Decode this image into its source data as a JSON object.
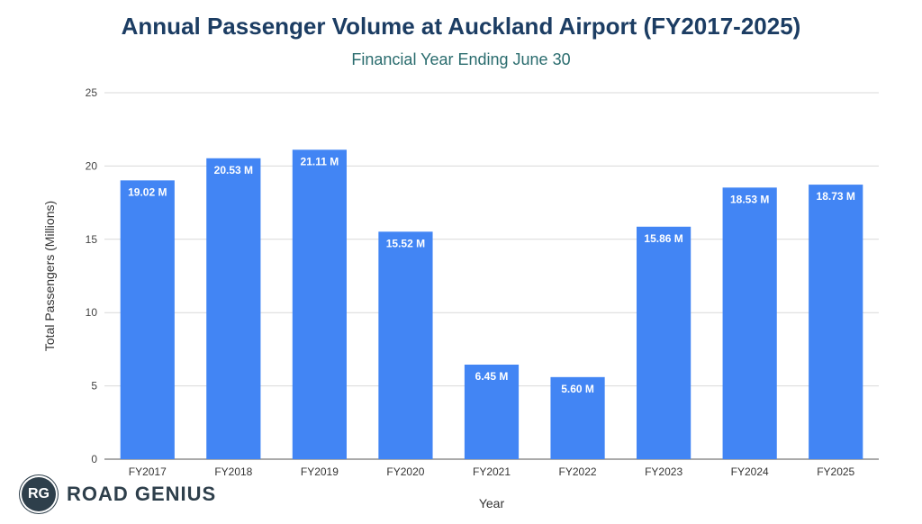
{
  "chart_data": {
    "type": "bar",
    "title": "Annual Passenger Volume at Auckland Airport (FY2017-2025)",
    "subtitle": "Financial Year Ending June 30",
    "xlabel": "Year",
    "ylabel": "Total Passengers (Millions)",
    "categories": [
      "FY2017",
      "FY2018",
      "FY2019",
      "FY2020",
      "FY2021",
      "FY2022",
      "FY2023",
      "FY2024",
      "FY2025"
    ],
    "values": [
      19.02,
      20.53,
      21.11,
      15.52,
      6.45,
      5.6,
      15.86,
      18.53,
      18.73
    ],
    "data_labels": [
      "19.02 M",
      "20.53 M",
      "21.11 M",
      "15.52 M",
      "6.45 M",
      "5.60 M",
      "15.86 M",
      "18.53 M",
      "18.73 M"
    ],
    "ylim": [
      0,
      25
    ],
    "yticks": [
      0,
      5,
      10,
      15,
      20,
      25
    ],
    "grid": true,
    "bar_color": "#4285f4"
  },
  "branding": {
    "badge": "RG",
    "name": "ROAD GENIUS"
  }
}
